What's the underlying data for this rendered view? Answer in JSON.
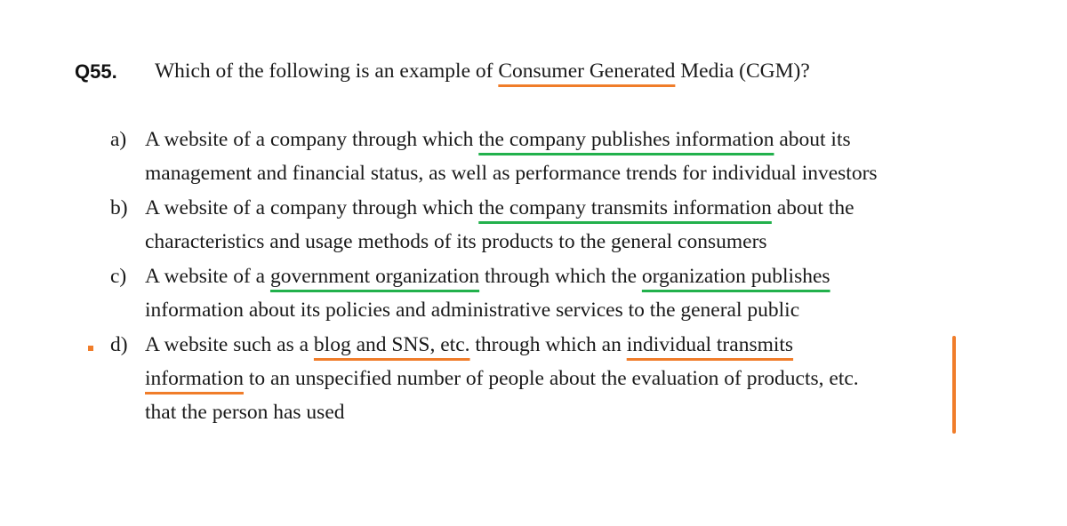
{
  "question": {
    "number": "Q55.",
    "text_pre": "Which of the following is an example of ",
    "text_highlight": "Consumer Generated",
    "text_post": " Media (CGM)?"
  },
  "options": {
    "a": {
      "letter": "a)",
      "line1_pre": "A website of a company through which ",
      "line1_highlight": "the company publishes information",
      "line1_post": " about its",
      "line2": "management and financial status, as well as performance trends for individual investors"
    },
    "b": {
      "letter": "b)",
      "line1_pre": "A website of a company through which ",
      "line1_highlight": "the company transmits information",
      "line1_post": " about the",
      "line2": "characteristics and usage methods of its products to the general consumers"
    },
    "c": {
      "letter": "c)",
      "line1_pre": "A website of a ",
      "line1_highlight1": "government organization",
      "line1_mid": " through which the ",
      "line1_highlight2": "organization publishes",
      "line2": "information about its policies and administrative services to the general public"
    },
    "d": {
      "letter": "d)",
      "line1_pre": "A website such as a ",
      "line1_highlight1": "blog and SNS, etc.",
      "line1_mid": " through which an ",
      "line1_highlight2": "individual transmits",
      "line2_highlight": "information",
      "line2_post": " to an unspecified number of people about the evaluation of products, etc.",
      "line3": "that the person has used"
    }
  },
  "annotations": {
    "answer_color": "#f07d2a",
    "distractor_color": "#22b14c"
  }
}
